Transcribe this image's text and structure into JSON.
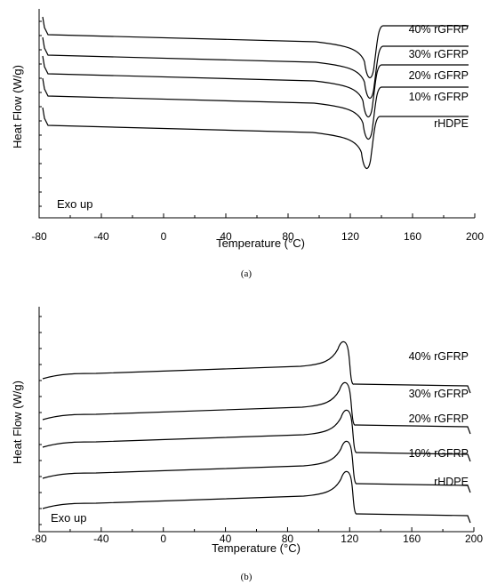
{
  "chart_data": [
    {
      "panel": "a",
      "type": "line",
      "caption": "(a)",
      "xlabel": "Temperature (°C)",
      "ylabel": "Heat Flow (W/g)",
      "annotation": "Exo up",
      "xlim": [
        -80,
        200
      ],
      "xticks": [
        -80,
        -40,
        0,
        40,
        80,
        120,
        160,
        200
      ],
      "y_tick_labels": false,
      "grid": false,
      "series": [
        {
          "name": "40% rGFRP",
          "peak_type": "endotherm",
          "peak_x": 132
        },
        {
          "name": "30% rGFRP",
          "peak_type": "endotherm",
          "peak_x": 132
        },
        {
          "name": "20% rGFRP",
          "peak_type": "endotherm",
          "peak_x": 131
        },
        {
          "name": "10% rGFRP",
          "peak_type": "endotherm",
          "peak_x": 131
        },
        {
          "name": "rHDPE",
          "peak_type": "endotherm",
          "peak_x": 130
        }
      ]
    },
    {
      "panel": "b",
      "type": "line",
      "caption": "(b)",
      "xlabel": "Temperature (°C)",
      "ylabel": "Heat Flow (W/g)",
      "annotation": "Exo up",
      "xlim": [
        -80,
        200
      ],
      "xticks": [
        -80,
        -40,
        0,
        40,
        80,
        120,
        160,
        200
      ],
      "y_tick_labels": false,
      "grid": false,
      "series": [
        {
          "name": "40% rGFRP",
          "peak_type": "exotherm",
          "peak_x": 117
        },
        {
          "name": "30% rGFRP",
          "peak_type": "exotherm",
          "peak_x": 118
        },
        {
          "name": "20% rGFRP",
          "peak_type": "exotherm",
          "peak_x": 119
        },
        {
          "name": "10% rGFRP",
          "peak_type": "exotherm",
          "peak_x": 119
        },
        {
          "name": "rHDPE",
          "peak_type": "exotherm",
          "peak_x": 119
        }
      ]
    }
  ]
}
